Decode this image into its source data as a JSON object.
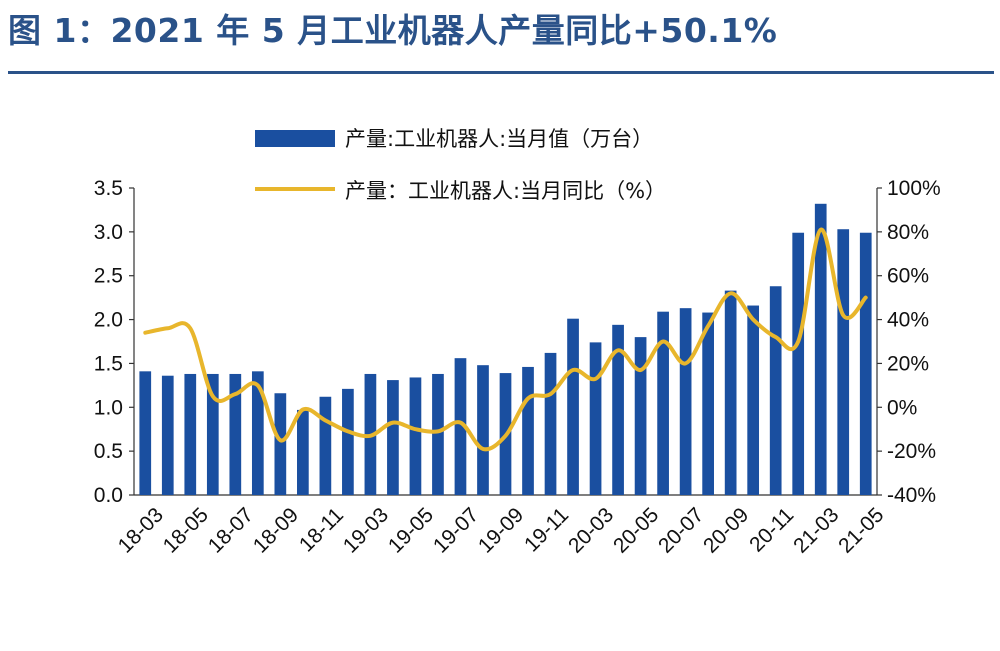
{
  "figure_title": "图 1：2021 年 5 月工业机器人产量同比+50.1%",
  "colors": {
    "title": "#2a5289",
    "bar": "#1a4fa0",
    "line": "#e8b62c"
  },
  "chart_data": {
    "type": "bar",
    "title": "",
    "x": [
      "18-03",
      "18-04",
      "18-05",
      "18-06",
      "18-07",
      "18-08",
      "18-09",
      "18-10",
      "18-11",
      "18-12",
      "19-03",
      "19-04",
      "19-05",
      "19-06",
      "19-07",
      "19-08",
      "19-09",
      "19-10",
      "19-11",
      "19-12",
      "20-03",
      "20-04",
      "20-05",
      "20-06",
      "20-07",
      "20-08",
      "20-09",
      "20-10",
      "20-11",
      "20-12",
      "21-03",
      "21-04",
      "21-05"
    ],
    "tick_labels": [
      "18-03",
      "18-05",
      "18-07",
      "18-09",
      "18-11",
      "19-03",
      "19-05",
      "19-07",
      "19-09",
      "19-11",
      "20-03",
      "20-05",
      "20-07",
      "20-09",
      "20-11",
      "21-03",
      "21-05"
    ],
    "series": [
      {
        "name": "产量:工业机器人:当月值（万台）",
        "type": "bar",
        "axis": "left",
        "values": [
          1.41,
          1.36,
          1.38,
          1.38,
          1.38,
          1.41,
          1.16,
          0.97,
          1.12,
          1.21,
          1.38,
          1.31,
          1.34,
          1.38,
          1.56,
          1.48,
          1.39,
          1.46,
          1.62,
          2.01,
          1.74,
          1.94,
          1.8,
          2.09,
          2.13,
          2.08,
          2.33,
          2.16,
          2.38,
          2.99,
          3.32,
          3.03,
          2.99
        ]
      },
      {
        "name": "产量：工业机器人:当月同比（%）",
        "type": "line",
        "axis": "right",
        "values": [
          34,
          36,
          36,
          5,
          6,
          10,
          -15,
          -1,
          -6,
          -11,
          -13,
          -7,
          -10,
          -11,
          -7,
          -19,
          -13,
          4,
          6,
          17,
          13,
          26,
          17,
          30,
          20,
          37,
          52,
          40,
          32,
          30,
          81,
          42,
          50
        ]
      }
    ],
    "y_left": {
      "min": 0,
      "max": 3.5,
      "step": 0.5,
      "tick_labels": [
        "0.0",
        "0.5",
        "1.0",
        "1.5",
        "2.0",
        "2.5",
        "3.0",
        "3.5"
      ]
    },
    "y_right": {
      "min": -40,
      "max": 100,
      "step": 20,
      "tick_labels": [
        "-40%",
        "-20%",
        "0%",
        "20%",
        "40%",
        "60%",
        "80%",
        "100%"
      ]
    },
    "grid": false,
    "legend": "top"
  }
}
